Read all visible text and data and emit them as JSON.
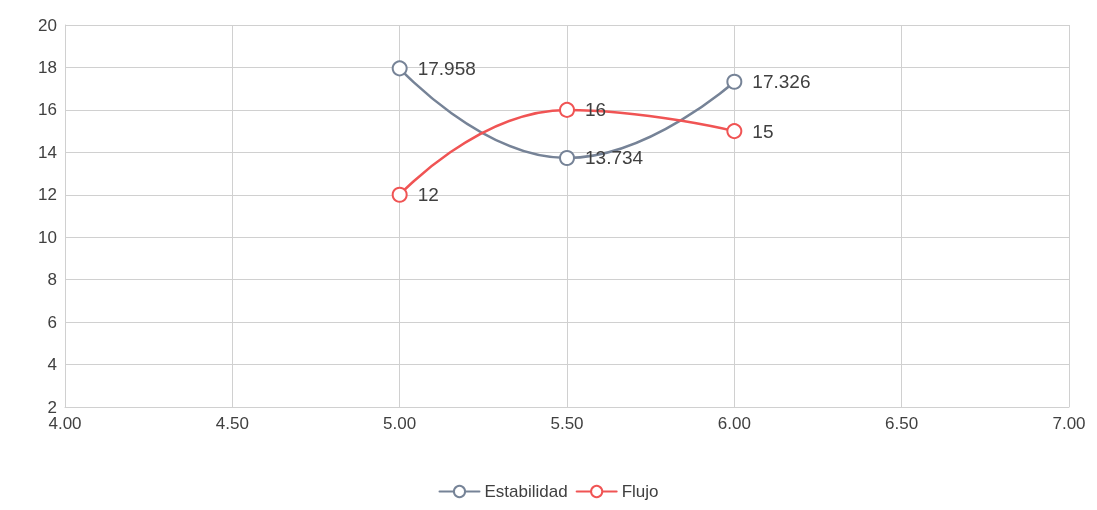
{
  "chart_data": {
    "type": "line",
    "x": [
      5,
      5.5,
      6
    ],
    "series": [
      {
        "name": "Estabilidad",
        "color": "#768397",
        "values": [
          17.958,
          13.734,
          17.326
        ]
      },
      {
        "name": "Flujo",
        "color": "#f05454",
        "values": [
          12,
          16,
          15
        ]
      }
    ],
    "xlim": [
      4,
      7
    ],
    "xticks": [
      {
        "value": 4,
        "label": "4.00"
      },
      {
        "value": 4.5,
        "label": "4.50"
      },
      {
        "value": 5,
        "label": "5.00"
      },
      {
        "value": 5.5,
        "label": "5.50"
      },
      {
        "value": 6,
        "label": "6.00"
      },
      {
        "value": 6.5,
        "label": "6.50"
      },
      {
        "value": 7,
        "label": "7.00"
      }
    ],
    "ylim": [
      2,
      20
    ],
    "yticks": [
      2,
      4,
      6,
      8,
      10,
      12,
      14,
      16,
      18,
      20
    ],
    "grid": true,
    "legend": "bottom",
    "marker": "circle",
    "line_style": "solid",
    "data_labels": true
  }
}
